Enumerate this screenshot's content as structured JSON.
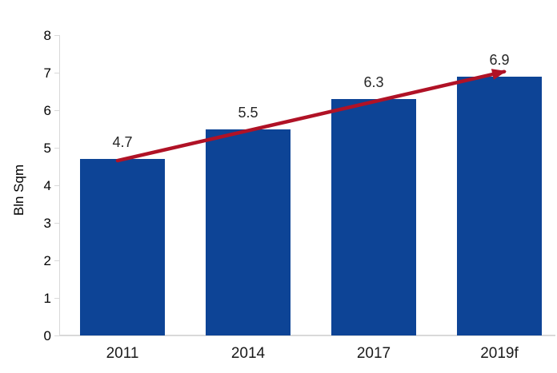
{
  "chart_data": {
    "type": "bar",
    "categories": [
      "2011",
      "2014",
      "2017",
      "2019f"
    ],
    "values": [
      4.7,
      5.5,
      6.3,
      6.9
    ],
    "value_labels": [
      "4.7",
      "5.5",
      "6.3",
      "6.9"
    ],
    "title": "",
    "xlabel": "",
    "ylabel": "Bln Sqm",
    "ylim": [
      0,
      8
    ],
    "ytick_step": 1,
    "yticks": [
      "0",
      "1",
      "2",
      "3",
      "4",
      "5",
      "6",
      "7",
      "8"
    ],
    "grid": false,
    "legend": false,
    "bar_color": "#0D4496",
    "axis_color": "#D9D9D9",
    "tick_label_color": "#000000",
    "value_label_color": "#262626",
    "x_label_color": "#1a1a1a",
    "trend_arrow": {
      "color": "#B01226",
      "from_category": "2011",
      "from_value": 4.7,
      "to_category": "2019f",
      "to_value": 6.9,
      "direction": "up"
    }
  }
}
